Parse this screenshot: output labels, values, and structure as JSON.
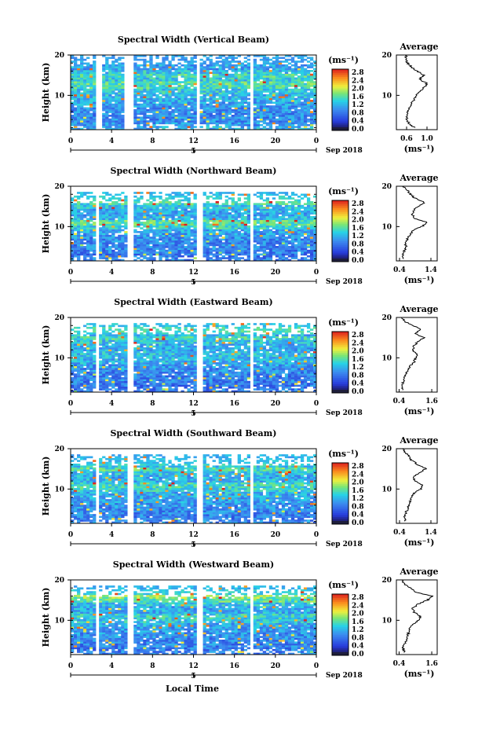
{
  "figure": {
    "common": {
      "y_axis_label": "Height (km)",
      "x_ticks": [
        "0",
        "4",
        "8",
        "12",
        "16",
        "20",
        "0"
      ],
      "y_ticks": [
        "20",
        "10"
      ],
      "day_marker": "5",
      "month_label": "Sep 2018",
      "colorbar_unit": "(ms⁻¹)",
      "colorbar_ticks": [
        "2.8",
        "2.4",
        "2.0",
        "1.6",
        "1.2",
        "0.8",
        "0.4",
        "0.0"
      ],
      "average_title": "Average",
      "average_xlabel": "(ms⁻¹)",
      "x_axis_label": "Local Time"
    }
  },
  "chart_data": [
    {
      "type": "heatmap",
      "title": "Spectral Width (Vertical Beam)",
      "xlabel": "Local Time",
      "ylabel": "Height (km)",
      "x_range": [
        0,
        24
      ],
      "y_range": [
        1.5,
        20
      ],
      "colorbar": {
        "label": "(ms⁻¹)",
        "range": [
          0,
          3.0
        ]
      },
      "gaps_hours": [
        [
          2.6,
          3.0
        ],
        [
          5.3,
          6.0
        ],
        [
          12.2,
          12.7
        ],
        [
          17.5,
          17.8
        ]
      ],
      "data_top_km": 20,
      "average_profile": {
        "title": "Average",
        "xlabel": "(ms⁻¹)",
        "xticks": [
          "0.6",
          "1.0"
        ],
        "xlim": [
          0.4,
          1.2
        ],
        "height_km": [
          2,
          3,
          4,
          5,
          6,
          7,
          8,
          9,
          10,
          11,
          12,
          13,
          14,
          15,
          16,
          17,
          18,
          19,
          20
        ],
        "values": [
          0.75,
          0.65,
          0.6,
          0.6,
          0.62,
          0.65,
          0.7,
          0.75,
          0.78,
          0.85,
          0.95,
          1.0,
          0.85,
          0.95,
          0.8,
          0.7,
          0.62,
          0.58,
          0.6
        ]
      }
    },
    {
      "type": "heatmap",
      "title": "Spectral Width (Northward Beam)",
      "xlabel": "Local Time",
      "ylabel": "Height (km)",
      "x_range": [
        0,
        24
      ],
      "y_range": [
        1.5,
        20
      ],
      "colorbar": {
        "label": "(ms⁻¹)",
        "range": [
          0,
          3.0
        ]
      },
      "gaps_hours": [
        [
          2.5,
          2.9
        ],
        [
          5.4,
          6.0
        ],
        [
          12.3,
          12.8
        ],
        [
          17.6,
          17.9
        ]
      ],
      "data_top_km": 18.5,
      "average_profile": {
        "title": "Average",
        "xlabel": "(ms⁻¹)",
        "xticks": [
          "0.4",
          "1.4"
        ],
        "xlim": [
          0.3,
          1.6
        ],
        "height_km": [
          2,
          3,
          4,
          5,
          6,
          7,
          8,
          9,
          10,
          11,
          12,
          13,
          14,
          15,
          16,
          17,
          18,
          19,
          20
        ],
        "values": [
          0.55,
          0.5,
          0.55,
          0.6,
          0.6,
          0.65,
          0.75,
          0.8,
          1.1,
          1.3,
          0.9,
          0.8,
          0.85,
          1.0,
          1.2,
          0.9,
          0.75,
          0.65,
          0.5
        ]
      }
    },
    {
      "type": "heatmap",
      "title": "Spectral Width (Eastward Beam)",
      "xlabel": "Local Time",
      "ylabel": "Height (km)",
      "x_range": [
        0,
        24
      ],
      "y_range": [
        1.5,
        20
      ],
      "colorbar": {
        "label": "(ms⁻¹)",
        "range": [
          0,
          3.0
        ]
      },
      "gaps_hours": [
        [
          2.5,
          2.9
        ],
        [
          5.4,
          6.0
        ],
        [
          12.3,
          12.8
        ],
        [
          17.6,
          17.9
        ]
      ],
      "data_top_km": 18.5,
      "average_profile": {
        "title": "Average",
        "xlabel": "(ms⁻¹)",
        "xticks": [
          "0.4",
          "1.6"
        ],
        "xlim": [
          0.3,
          1.8
        ],
        "height_km": [
          2,
          3,
          4,
          5,
          6,
          7,
          8,
          9,
          10,
          11,
          12,
          13,
          14,
          15,
          16,
          17,
          18,
          19,
          20
        ],
        "values": [
          0.55,
          0.5,
          0.55,
          0.6,
          0.65,
          0.7,
          0.8,
          0.95,
          1.0,
          1.05,
          0.9,
          0.95,
          1.1,
          1.3,
          1.0,
          1.2,
          0.9,
          0.6,
          0.5
        ]
      }
    },
    {
      "type": "heatmap",
      "title": "Spectral Width (Southward Beam)",
      "xlabel": "Local Time",
      "ylabel": "Height (km)",
      "x_range": [
        0,
        24
      ],
      "y_range": [
        1.5,
        20
      ],
      "colorbar": {
        "label": "(ms⁻¹)",
        "range": [
          0,
          3.0
        ]
      },
      "gaps_hours": [
        [
          2.5,
          2.9
        ],
        [
          5.4,
          6.0
        ],
        [
          12.3,
          12.8
        ],
        [
          17.6,
          17.9
        ]
      ],
      "data_top_km": 18.5,
      "average_profile": {
        "title": "Average",
        "xlabel": "(ms⁻¹)",
        "xticks": [
          "0.4",
          "1.4"
        ],
        "xlim": [
          0.3,
          1.6
        ],
        "height_km": [
          2,
          3,
          4,
          5,
          6,
          7,
          8,
          9,
          10,
          11,
          12,
          13,
          14,
          15,
          16,
          17,
          18,
          19,
          20
        ],
        "values": [
          0.6,
          0.55,
          0.6,
          0.65,
          0.7,
          0.75,
          0.8,
          0.85,
          1.1,
          1.15,
          0.9,
          0.85,
          1.0,
          1.25,
          1.0,
          0.8,
          0.7,
          0.6,
          0.5
        ]
      }
    },
    {
      "type": "heatmap",
      "title": "Spectral Width (Westward Beam)",
      "xlabel": "Local Time",
      "ylabel": "Height (km)",
      "x_range": [
        0,
        24
      ],
      "y_range": [
        1.5,
        20
      ],
      "colorbar": {
        "label": "(ms⁻¹)",
        "range": [
          0,
          3.0
        ]
      },
      "gaps_hours": [
        [
          2.5,
          2.9
        ],
        [
          5.4,
          6.0
        ],
        [
          12.3,
          12.8
        ],
        [
          17.6,
          17.9
        ]
      ],
      "data_top_km": 18.5,
      "average_profile": {
        "title": "Average",
        "xlabel": "(ms⁻¹)",
        "xticks": [
          "0.4",
          "1.6"
        ],
        "xlim": [
          0.3,
          1.8
        ],
        "height_km": [
          2,
          3,
          4,
          5,
          6,
          7,
          8,
          9,
          10,
          11,
          12,
          13,
          14,
          15,
          16,
          17,
          18,
          19,
          20
        ],
        "values": [
          0.6,
          0.55,
          0.6,
          0.65,
          0.7,
          0.75,
          0.8,
          0.9,
          1.1,
          1.2,
          0.95,
          0.9,
          1.1,
          1.45,
          1.6,
          1.0,
          0.8,
          0.6,
          0.5
        ]
      }
    }
  ]
}
